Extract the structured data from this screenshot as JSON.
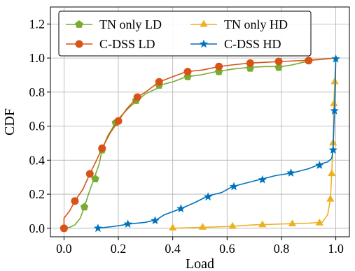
{
  "chart_data": {
    "type": "line",
    "title": "",
    "xlabel": "Load",
    "ylabel": "CDF",
    "xlim": [
      -0.05,
      1.05
    ],
    "ylim": [
      -0.05,
      1.3
    ],
    "xticks": [
      0.0,
      0.2,
      0.4,
      0.6,
      0.8,
      1.0
    ],
    "xtick_labels": [
      "0.0",
      "0.2",
      "0.4",
      "0.6",
      "0.8",
      "1.0"
    ],
    "yticks": [
      0.0,
      0.2,
      0.4,
      0.6,
      0.8,
      1.0,
      1.2
    ],
    "ytick_labels": [
      "0.0",
      "0.2",
      "0.4",
      "0.6",
      "0.8",
      "1.0",
      "1.2"
    ],
    "grid": true,
    "legend": {
      "placement": "top",
      "columns": 2,
      "order": [
        "TN only LD",
        "TN only HD",
        "C-DSS LD",
        "C-DSS HD"
      ]
    },
    "series": [
      {
        "name": "TN only LD",
        "color": "#77ac30",
        "marker": "pentagon",
        "line": [
          [
            0.0,
            0.0
          ],
          [
            0.02,
            0.005
          ],
          [
            0.04,
            0.02
          ],
          [
            0.06,
            0.06
          ],
          [
            0.075,
            0.125
          ],
          [
            0.09,
            0.2
          ],
          [
            0.11,
            0.29
          ],
          [
            0.13,
            0.38
          ],
          [
            0.14,
            0.46
          ],
          [
            0.16,
            0.54
          ],
          [
            0.19,
            0.62
          ],
          [
            0.21,
            0.66
          ],
          [
            0.24,
            0.71
          ],
          [
            0.27,
            0.75
          ],
          [
            0.3,
            0.79
          ],
          [
            0.34,
            0.82
          ],
          [
            0.35,
            0.84
          ],
          [
            0.4,
            0.86
          ],
          [
            0.45,
            0.89
          ],
          [
            0.5,
            0.9
          ],
          [
            0.56,
            0.92
          ],
          [
            0.62,
            0.935
          ],
          [
            0.68,
            0.945
          ],
          [
            0.74,
            0.95
          ],
          [
            0.8,
            0.95
          ],
          [
            0.84,
            0.96
          ],
          [
            0.88,
            0.975
          ],
          [
            0.92,
            0.99
          ],
          [
            0.96,
            0.995
          ],
          [
            1.0,
            1.0
          ]
        ],
        "markers": [
          [
            0.0,
            0.0
          ],
          [
            0.075,
            0.125
          ],
          [
            0.115,
            0.29
          ],
          [
            0.14,
            0.46
          ],
          [
            0.19,
            0.62
          ],
          [
            0.265,
            0.75
          ],
          [
            0.35,
            0.84
          ],
          [
            0.455,
            0.89
          ],
          [
            0.57,
            0.92
          ],
          [
            0.685,
            0.94
          ],
          [
            0.79,
            0.945
          ],
          [
            0.9,
            0.985
          ]
        ]
      },
      {
        "name": "C-DSS LD",
        "color": "#d95319",
        "marker": "circle",
        "line": [
          [
            0.0,
            0.0
          ],
          [
            0.0,
            0.06
          ],
          [
            0.02,
            0.1
          ],
          [
            0.04,
            0.16
          ],
          [
            0.07,
            0.23
          ],
          [
            0.095,
            0.32
          ],
          [
            0.12,
            0.4
          ],
          [
            0.14,
            0.47
          ],
          [
            0.17,
            0.56
          ],
          [
            0.2,
            0.63
          ],
          [
            0.23,
            0.7
          ],
          [
            0.27,
            0.77
          ],
          [
            0.3,
            0.8
          ],
          [
            0.35,
            0.86
          ],
          [
            0.4,
            0.89
          ],
          [
            0.45,
            0.92
          ],
          [
            0.51,
            0.93
          ],
          [
            0.57,
            0.95
          ],
          [
            0.62,
            0.96
          ],
          [
            0.68,
            0.97
          ],
          [
            0.74,
            0.975
          ],
          [
            0.8,
            0.98
          ],
          [
            0.87,
            0.985
          ],
          [
            0.93,
            0.99
          ],
          [
            1.0,
            1.0
          ]
        ],
        "markers": [
          [
            0.0,
            0.0
          ],
          [
            0.04,
            0.16
          ],
          [
            0.095,
            0.32
          ],
          [
            0.14,
            0.47
          ],
          [
            0.2,
            0.63
          ],
          [
            0.27,
            0.77
          ],
          [
            0.35,
            0.86
          ],
          [
            0.455,
            0.92
          ],
          [
            0.57,
            0.95
          ],
          [
            0.685,
            0.97
          ],
          [
            0.79,
            0.98
          ],
          [
            0.9,
            0.985
          ]
        ]
      },
      {
        "name": "TN only HD",
        "color": "#edb120",
        "marker": "triangle",
        "line": [
          [
            0.4,
            0.0
          ],
          [
            0.5,
            0.005
          ],
          [
            0.6,
            0.01
          ],
          [
            0.7,
            0.02
          ],
          [
            0.8,
            0.025
          ],
          [
            0.9,
            0.03
          ],
          [
            0.95,
            0.035
          ],
          [
            0.97,
            0.08
          ],
          [
            0.98,
            0.17
          ],
          [
            0.985,
            0.32
          ],
          [
            0.99,
            0.5
          ],
          [
            0.993,
            0.73
          ],
          [
            0.996,
            0.86
          ],
          [
            1.0,
            1.0
          ]
        ],
        "markers": [
          [
            0.4,
            0.0
          ],
          [
            0.51,
            0.005
          ],
          [
            0.62,
            0.01
          ],
          [
            0.73,
            0.02
          ],
          [
            0.84,
            0.025
          ],
          [
            0.94,
            0.03
          ],
          [
            0.98,
            0.17
          ],
          [
            0.985,
            0.32
          ],
          [
            0.99,
            0.5
          ],
          [
            0.993,
            0.73
          ],
          [
            0.996,
            0.86
          ]
        ]
      },
      {
        "name": "C-DSS HD",
        "color": "#0072bd",
        "marker": "star",
        "line": [
          [
            0.12,
            0.0
          ],
          [
            0.18,
            0.01
          ],
          [
            0.24,
            0.025
          ],
          [
            0.3,
            0.035
          ],
          [
            0.34,
            0.05
          ],
          [
            0.37,
            0.08
          ],
          [
            0.43,
            0.115
          ],
          [
            0.48,
            0.15
          ],
          [
            0.53,
            0.19
          ],
          [
            0.58,
            0.21
          ],
          [
            0.62,
            0.245
          ],
          [
            0.68,
            0.27
          ],
          [
            0.73,
            0.29
          ],
          [
            0.78,
            0.31
          ],
          [
            0.84,
            0.325
          ],
          [
            0.9,
            0.35
          ],
          [
            0.94,
            0.375
          ],
          [
            0.97,
            0.39
          ],
          [
            0.985,
            0.41
          ],
          [
            0.99,
            0.46
          ],
          [
            0.993,
            0.6
          ],
          [
            0.995,
            0.69
          ],
          [
            0.998,
            0.85
          ],
          [
            1.0,
            1.0
          ]
        ],
        "markers": [
          [
            0.125,
            0.0
          ],
          [
            0.235,
            0.025
          ],
          [
            0.335,
            0.045
          ],
          [
            0.43,
            0.115
          ],
          [
            0.53,
            0.185
          ],
          [
            0.625,
            0.245
          ],
          [
            0.73,
            0.285
          ],
          [
            0.835,
            0.325
          ],
          [
            0.94,
            0.37
          ],
          [
            0.99,
            0.46
          ],
          [
            0.995,
            0.69
          ],
          [
            1.0,
            0.995
          ]
        ]
      }
    ]
  }
}
